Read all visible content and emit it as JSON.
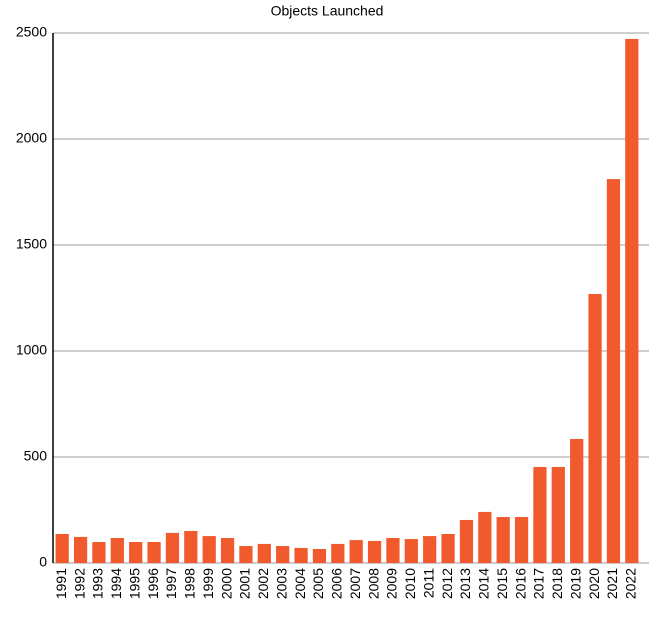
{
  "chart_data": {
    "type": "bar",
    "title": "Objects Launched",
    "categories": [
      "1991",
      "1992",
      "1993",
      "1994",
      "1995",
      "1996",
      "1997",
      "1998",
      "1999",
      "2000",
      "2001",
      "2002",
      "2003",
      "2004",
      "2005",
      "2006",
      "2007",
      "2008",
      "2009",
      "2010",
      "2011",
      "2012",
      "2013",
      "2014",
      "2015",
      "2016",
      "2017",
      "2018",
      "2019",
      "2020",
      "2021",
      "2022"
    ],
    "values": [
      137,
      123,
      99,
      118,
      99,
      99,
      142,
      151,
      127,
      118,
      80,
      90,
      80,
      71,
      66,
      90,
      108,
      104,
      118,
      113,
      127,
      137,
      203,
      241,
      217,
      217,
      453,
      453,
      585,
      1269,
      1811,
      2472
    ],
    "color": "#f05a2c",
    "ylim": [
      0,
      2500
    ],
    "yticks": [
      0,
      500,
      1000,
      1500,
      2000,
      2500
    ],
    "grid": true
  }
}
